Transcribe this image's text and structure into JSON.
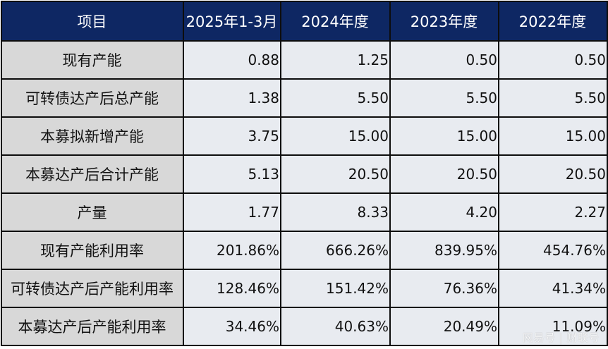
{
  "table": {
    "headers": [
      "项目",
      "2025年1-3月",
      "2024年度",
      "2023年度",
      "2022年度"
    ],
    "rows": [
      {
        "label": "现有产能",
        "values": [
          "0.88",
          "1.25",
          "0.50",
          "0.50"
        ]
      },
      {
        "label": "可转债达产后总产能",
        "values": [
          "1.38",
          "5.50",
          "5.50",
          "5.50"
        ]
      },
      {
        "label": "本募拟新增产能",
        "values": [
          "3.75",
          "15.00",
          "15.00",
          "15.00"
        ]
      },
      {
        "label": "本募达产后合计产能",
        "values": [
          "5.13",
          "20.50",
          "20.50",
          "20.50"
        ]
      },
      {
        "label": "产量",
        "values": [
          "1.77",
          "8.33",
          "4.20",
          "2.27"
        ]
      },
      {
        "label": "现有产能利用率",
        "values": [
          "201.86%",
          "666.26%",
          "839.95%",
          "454.76%"
        ]
      },
      {
        "label": "可转债达产后产能利用率",
        "values": [
          "128.46%",
          "151.42%",
          "76.36%",
          "41.34%"
        ]
      },
      {
        "label": "本募达产后产能利用率",
        "values": [
          "34.46%",
          "40.63%",
          "20.49%",
          "11.09%"
        ]
      }
    ]
  },
  "watermark": "网易号 | 财联号",
  "colors": {
    "header_bg": "#0e2763",
    "header_text": "#ffffff",
    "label_bg": "#d8d8d8",
    "value_bg": "#e8ebf0",
    "border": "#0d0d0d"
  }
}
